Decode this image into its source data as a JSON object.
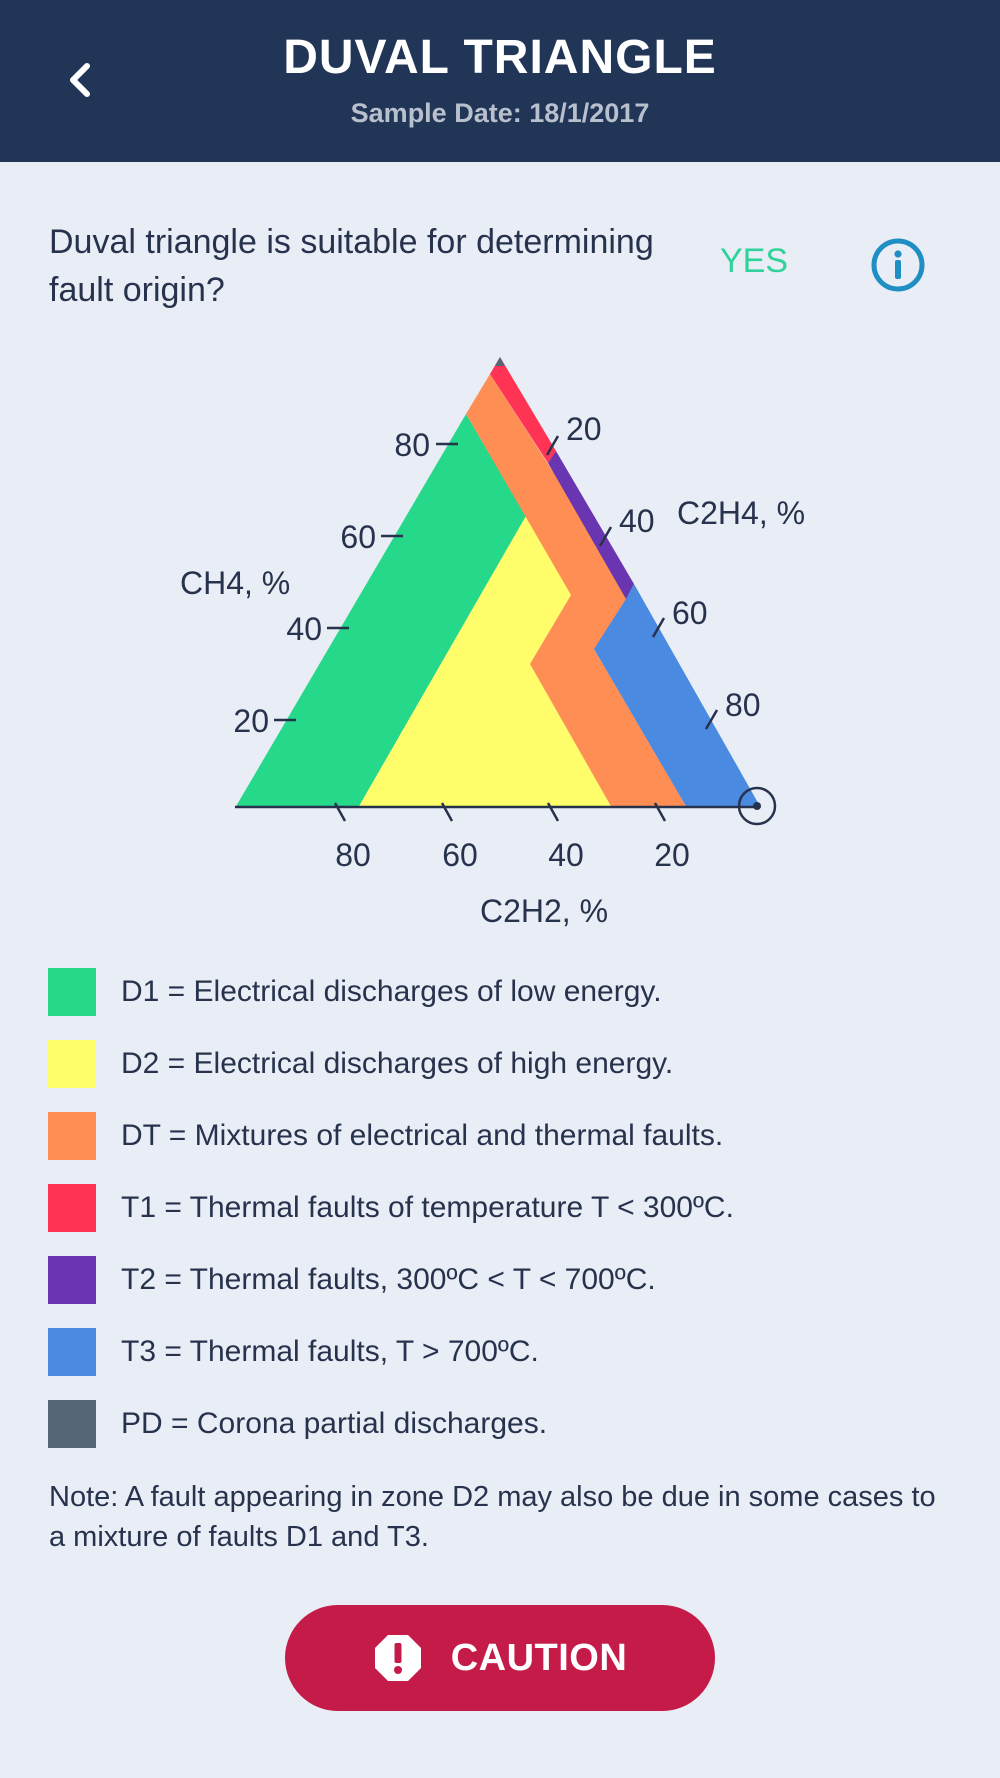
{
  "header": {
    "title": "DUVAL TRIANGLE",
    "subtitle": "Sample Date: 18/1/2017",
    "back_icon": "chevron-left-icon"
  },
  "question": {
    "text": "Duval triangle is suitable for determining fault origin?",
    "answer": "YES",
    "answer_color": "#2fd39a",
    "info_icon": "info-icon"
  },
  "triangle": {
    "axes": {
      "ch4": {
        "label": "CH4, %",
        "ticks": [
          "80",
          "60",
          "40",
          "20"
        ]
      },
      "c2h4": {
        "label": "C2H4, %",
        "ticks": [
          "20",
          "40",
          "60",
          "80"
        ]
      },
      "c2h2": {
        "label": "C2H2, %",
        "ticks": [
          "80",
          "60",
          "40",
          "20"
        ]
      }
    },
    "marker_icon": "circle-marker-icon"
  },
  "legend": [
    {
      "code": "D1",
      "text": "D1 = Electrical discharges of low energy.",
      "color": "#25d88a"
    },
    {
      "code": "D2",
      "text": "D2 = Electrical discharges of high energy.",
      "color": "#fffe6a"
    },
    {
      "code": "DT",
      "text": "DT = Mixtures of electrical and thermal faults.",
      "color": "#ff8e55"
    },
    {
      "code": "T1",
      "text": "T1 = Thermal faults of temperature T < 300ºC.",
      "color": "#ff3354"
    },
    {
      "code": "T2",
      "text": "T2 = Thermal faults, 300ºC < T < 700ºC.",
      "color": "#6a35b1"
    },
    {
      "code": "T3",
      "text": "T3 = Thermal faults, T > 700ºC.",
      "color": "#4a8ae0"
    },
    {
      "code": "PD",
      "text": "PD = Corona partial discharges.",
      "color": "#566676"
    }
  ],
  "note": "Note: A fault appearing in zone D2 may also be due in some cases to a mixture of faults D1 and T3.",
  "caution_button": {
    "label": "CAUTION",
    "icon": "alert-icon"
  }
}
